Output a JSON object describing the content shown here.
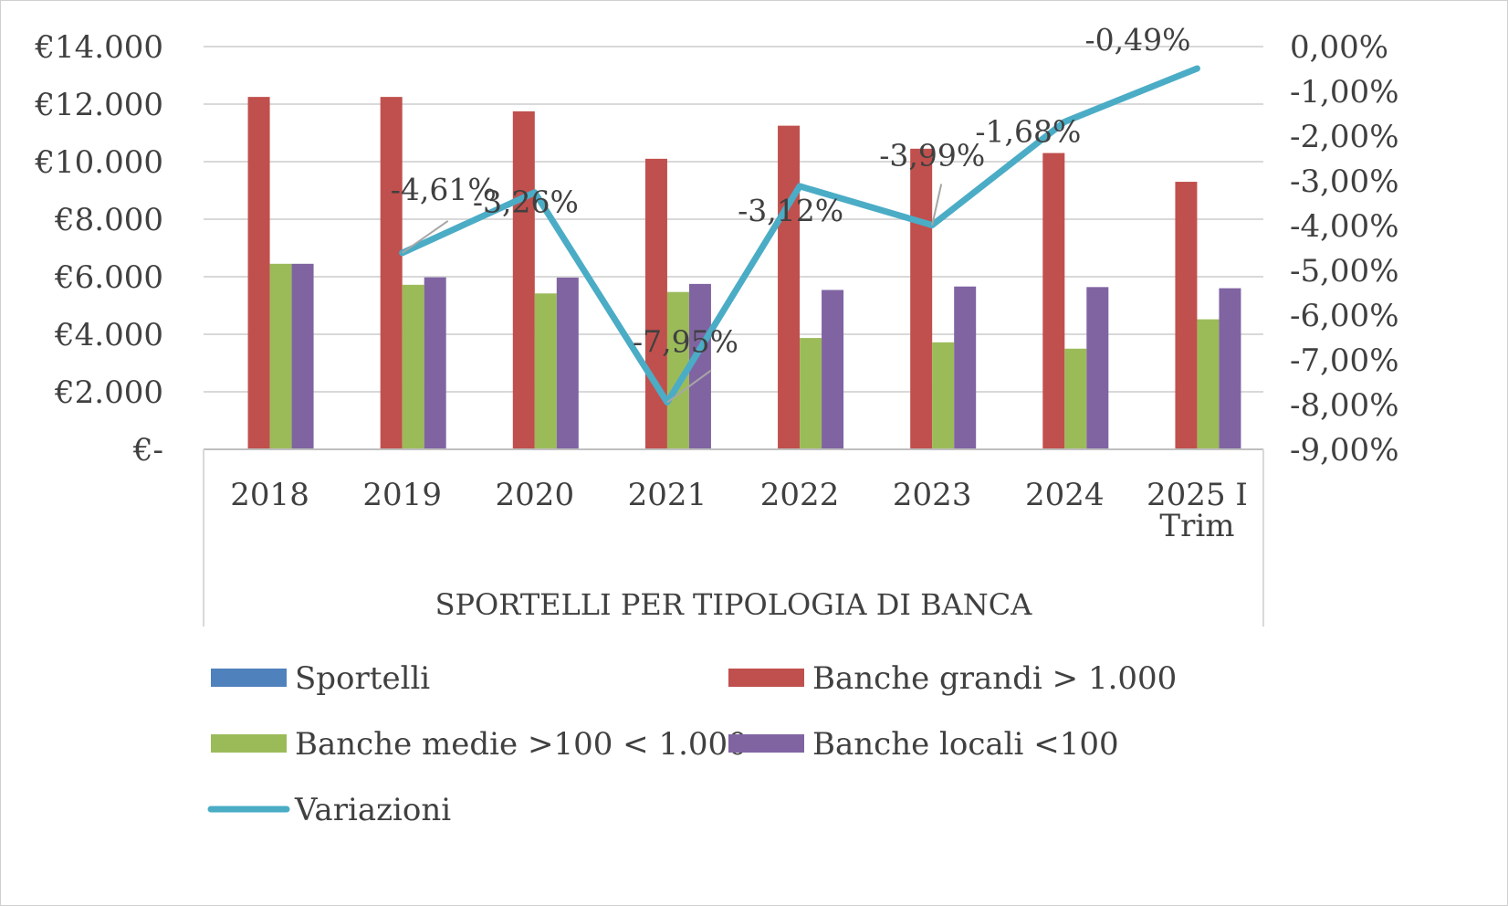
{
  "chart_data": {
    "type": "bar",
    "title": "",
    "xlabel": "SPORTELLI PER TIPOLOGIA DI BANCA",
    "ylabel": "",
    "categories": [
      [
        "2018"
      ],
      [
        "2019"
      ],
      [
        "2020"
      ],
      [
        "2021"
      ],
      [
        "2022"
      ],
      [
        "2023"
      ],
      [
        "2024"
      ],
      [
        "2025 I",
        "Trim"
      ]
    ],
    "ylim": [
      0,
      14000
    ],
    "y_ticks": [
      "€-",
      "€2.000",
      "€4.000",
      "€6.000",
      "€8.000",
      "€10.000",
      "€12.000",
      "€14.000"
    ],
    "y2lim": [
      -9,
      0
    ],
    "y2_ticks": [
      "-9,00%",
      "-8,00%",
      "-7,00%",
      "-6,00%",
      "-5,00%",
      "-4,00%",
      "-3,00%",
      "-2,00%",
      "-1,00%",
      "0,00%"
    ],
    "grid": true,
    "legend_position": "bottom",
    "series": [
      {
        "name": "Sportelli",
        "type": "bar",
        "color": "#4f81bd",
        "values": [
          0,
          0,
          0,
          0,
          0,
          0,
          0,
          0
        ]
      },
      {
        "name": "Banche grandi > 1.000",
        "type": "bar",
        "color": "#c0504d",
        "values": [
          12250,
          12250,
          11750,
          10100,
          11250,
          10450,
          10300,
          9300
        ]
      },
      {
        "name": "Banche medie >100 < 1.000",
        "type": "bar",
        "color": "#9bbb59",
        "values": [
          6450,
          5720,
          5420,
          5470,
          3870,
          3720,
          3500,
          4520
        ]
      },
      {
        "name": "Banche locali <100",
        "type": "bar",
        "color": "#8064a2",
        "values": [
          6450,
          5980,
          5970,
          5750,
          5540,
          5660,
          5640,
          5600
        ]
      },
      {
        "name": "Variazioni",
        "type": "line",
        "axis": "right",
        "color": "#4bacc6",
        "values": [
          null,
          -4.61,
          -3.26,
          -7.95,
          -3.12,
          -3.99,
          -1.68,
          -0.49
        ],
        "labels": [
          null,
          "-4,61%",
          "-3,26%",
          "-7,95%",
          "-3,12%",
          "-3,99%",
          "-1,68%",
          "-0,49%"
        ]
      }
    ]
  }
}
